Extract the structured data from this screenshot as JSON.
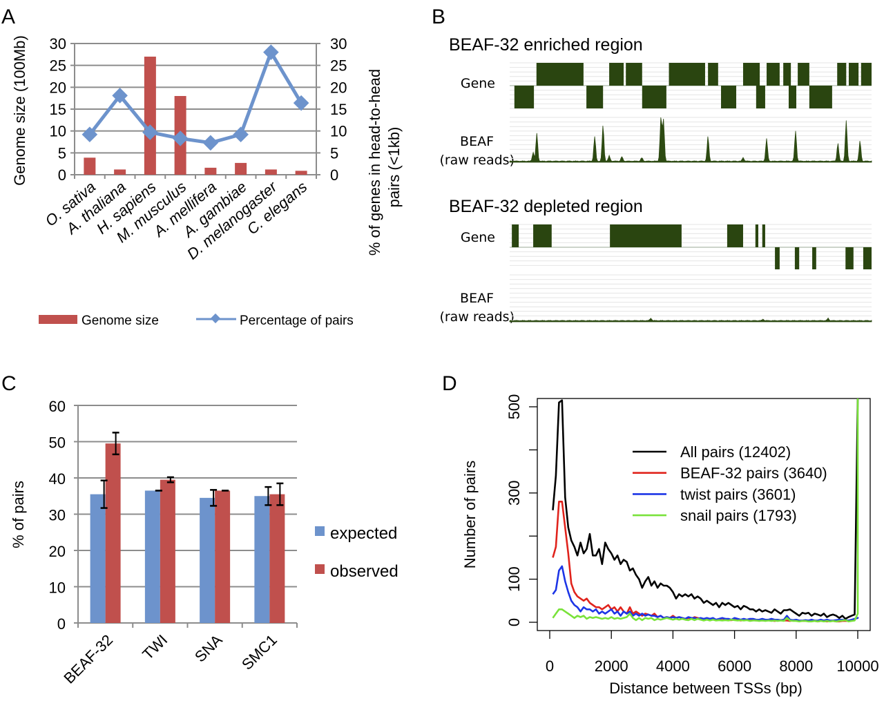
{
  "panels": {
    "A": {
      "letter": "A"
    },
    "B": {
      "letter": "B"
    },
    "C": {
      "letter": "C"
    },
    "D": {
      "letter": "D"
    }
  },
  "chart_data": [
    {
      "id": "A",
      "type": "bar+line",
      "title": "",
      "categories": [
        "O. sativa",
        "A. thaliana",
        "H. sapiens",
        "M. musculus",
        "A. mellifera",
        "A. gambiae",
        "D. melanogaster",
        "C. elegans"
      ],
      "series": [
        {
          "name": "Genome size",
          "type": "bar",
          "axis": "left",
          "color": "#c0504d",
          "values": [
            3.9,
            1.2,
            27.0,
            18.0,
            1.6,
            2.7,
            1.2,
            0.9
          ]
        },
        {
          "name": "Percentage of pairs",
          "type": "line",
          "axis": "right",
          "color": "#6d93cc",
          "values": [
            9.2,
            18.1,
            9.7,
            8.3,
            7.3,
            9.2,
            28.0,
            16.4
          ]
        }
      ],
      "ylabel": "Genome size (100Mb)",
      "ylabel_right": "% of genes in head-to-head pairs (<1kb)",
      "ylabel_right_lines": [
        "% of genes in head-to-head",
        "pairs (<1kb)"
      ],
      "ylim": [
        0,
        30
      ],
      "ylim_right": [
        0,
        30
      ],
      "yticks": [
        "0",
        "5",
        "10",
        "15",
        "20",
        "25",
        "30"
      ],
      "grid": true,
      "legend": [
        "Genome size",
        "Percentage of pairs"
      ],
      "legend_position": "bottom"
    },
    {
      "id": "B",
      "type": "genome-track",
      "regions": [
        {
          "title": "BEAF-32 enriched region",
          "gene_label": "Gene",
          "signal_label_1": "BEAF",
          "signal_label_2": "(raw reads)",
          "genes_plus": [
            [
              0.074,
              0.204
            ],
            [
              0.275,
              0.315
            ],
            [
              0.321,
              0.366
            ],
            [
              0.44,
              0.54
            ],
            [
              0.548,
              0.576
            ],
            [
              0.645,
              0.691
            ],
            [
              0.71,
              0.746
            ],
            [
              0.756,
              0.777
            ],
            [
              0.796,
              0.828
            ],
            [
              0.905,
              0.93
            ],
            [
              0.937,
              0.964
            ],
            [
              0.971,
              1.0
            ]
          ],
          "genes_minus": [
            [
              0.013,
              0.067
            ],
            [
              0.212,
              0.258
            ],
            [
              0.366,
              0.433
            ],
            [
              0.584,
              0.626
            ],
            [
              0.681,
              0.706
            ],
            [
              0.771,
              0.792
            ],
            [
              0.828,
              0.891
            ]
          ],
          "peaks": [
            [
              0.075,
              0.62
            ],
            [
              0.065,
              0.2
            ],
            [
              0.235,
              0.55
            ],
            [
              0.258,
              0.8
            ],
            [
              0.275,
              0.12
            ],
            [
              0.31,
              0.1
            ],
            [
              0.365,
              0.08
            ],
            [
              0.418,
              1.0
            ],
            [
              0.425,
              0.93
            ],
            [
              0.548,
              0.55
            ],
            [
              0.645,
              0.08
            ],
            [
              0.71,
              0.5
            ],
            [
              0.79,
              0.68
            ],
            [
              0.907,
              0.4
            ],
            [
              0.93,
              0.9
            ],
            [
              0.968,
              0.45
            ]
          ],
          "signal_color": "#2d4a12"
        },
        {
          "title": "BEAF-32 depleted region",
          "gene_label": "Gene",
          "signal_label_1": "BEAF",
          "signal_label_2": "(raw reads)",
          "genes_plus": [
            [
              0.006,
              0.025
            ],
            [
              0.065,
              0.116
            ],
            [
              0.277,
              0.475
            ],
            [
              0.601,
              0.645
            ],
            [
              0.679,
              0.687
            ],
            [
              0.698,
              0.706
            ]
          ],
          "genes_minus": [
            [
              0.733,
              0.746
            ],
            [
              0.788,
              0.8
            ],
            [
              0.836,
              0.847
            ],
            [
              0.928,
              0.95
            ],
            [
              0.977,
              1.0
            ]
          ],
          "peaks": [
            [
              0.39,
              0.05
            ],
            [
              0.7,
              0.03
            ],
            [
              0.88,
              0.05
            ]
          ],
          "signal_color": "#2d4a12"
        }
      ],
      "gene_color": "#2a4510"
    },
    {
      "id": "C",
      "type": "bar",
      "categories": [
        "BEAF-32",
        "TWI",
        "SNA",
        "SMC1"
      ],
      "series": [
        {
          "name": "expected",
          "color": "#6d93cc",
          "values": [
            35.5,
            36.5,
            34.5,
            35.0
          ],
          "error": [
            3.8,
            0.0,
            2.2,
            2.5
          ]
        },
        {
          "name": "observed",
          "color": "#c0504d",
          "values": [
            49.5,
            39.5,
            36.5,
            35.5
          ],
          "error": [
            3.0,
            0.7,
            0.0,
            3.0
          ]
        }
      ],
      "ylabel": "% of pairs",
      "xlabel": "",
      "ylim": [
        0,
        60
      ],
      "yticks": [
        "0",
        "10",
        "20",
        "30",
        "40",
        "50",
        "60"
      ],
      "grid": true,
      "legend_position": "right"
    },
    {
      "id": "D",
      "type": "line",
      "xlabel": "Distance between TSSs (bp)",
      "ylabel": "Number of pairs",
      "xlim": [
        0,
        10000
      ],
      "ylim": [
        0,
        500
      ],
      "xticks": [
        "0",
        "2000",
        "4000",
        "6000",
        "8000",
        "10000"
      ],
      "yticks": [
        "0",
        "100",
        "300",
        "500"
      ],
      "legend_position": "top-right",
      "x": [
        100,
        200,
        300,
        400,
        500,
        600,
        700,
        800,
        900,
        1000,
        1100,
        1200,
        1300,
        1400,
        1500,
        1600,
        1700,
        1800,
        1900,
        2000,
        2100,
        2200,
        2300,
        2400,
        2500,
        2600,
        2700,
        2800,
        2900,
        3000,
        3100,
        3200,
        3300,
        3400,
        3500,
        3600,
        3700,
        3800,
        3900,
        4000,
        4100,
        4200,
        4300,
        4400,
        4500,
        4600,
        4700,
        4800,
        4900,
        5000,
        5100,
        5200,
        5300,
        5400,
        5500,
        5600,
        5700,
        5800,
        5900,
        6000,
        6100,
        6200,
        6300,
        6400,
        6500,
        6600,
        6700,
        6800,
        6900,
        7000,
        7100,
        7200,
        7300,
        7400,
        7500,
        7600,
        7700,
        7800,
        7900,
        8000,
        8100,
        8200,
        8300,
        8400,
        8500,
        8600,
        8700,
        8800,
        8900,
        9000,
        9100,
        9200,
        9300,
        9400,
        9500,
        9600,
        9700,
        9800,
        9900,
        10000,
        10050
      ],
      "series": [
        {
          "name": "All pairs (12402)",
          "color": "#000000",
          "values": [
            260,
            340,
            510,
            515,
            290,
            220,
            190,
            175,
            155,
            185,
            160,
            170,
            205,
            155,
            155,
            170,
            135,
            185,
            170,
            160,
            145,
            155,
            135,
            145,
            140,
            120,
            125,
            110,
            100,
            80,
            95,
            105,
            85,
            95,
            80,
            90,
            85,
            85,
            80,
            70,
            55,
            65,
            60,
            65,
            60,
            65,
            55,
            60,
            55,
            45,
            50,
            45,
            40,
            45,
            35,
            45,
            40,
            45,
            40,
            35,
            38,
            30,
            38,
            35,
            30,
            30,
            25,
            30,
            25,
            28,
            25,
            22,
            30,
            25,
            20,
            28,
            28,
            30,
            25,
            20,
            15,
            22,
            20,
            22,
            15,
            20,
            18,
            15,
            20,
            12,
            16,
            18,
            15,
            10,
            15,
            8,
            12,
            15,
            18,
            520,
            520
          ]
        },
        {
          "name": "BEAF-32 pairs (3640)",
          "color": "#e0231c",
          "values": [
            150,
            175,
            280,
            280,
            220,
            160,
            90,
            70,
            60,
            55,
            50,
            55,
            45,
            40,
            35,
            35,
            30,
            35,
            40,
            30,
            35,
            25,
            35,
            25,
            20,
            35,
            20,
            25,
            20,
            15,
            20,
            18,
            15,
            20,
            12,
            15,
            10,
            12,
            10,
            15,
            10,
            12,
            10,
            8,
            10,
            8,
            12,
            10,
            8,
            6,
            8,
            6,
            8,
            5,
            6,
            5,
            8,
            5,
            5,
            6,
            5,
            4,
            5,
            6,
            4,
            5,
            4,
            5,
            4,
            4,
            5,
            4,
            3,
            4,
            5,
            4,
            4,
            3,
            4,
            4,
            3,
            3,
            3,
            4,
            3,
            3,
            2,
            3,
            3,
            2,
            3,
            3,
            2,
            2,
            3,
            3,
            3,
            4,
            8,
            10,
            12
          ]
        },
        {
          "name": "twist pairs (3601)",
          "color": "#1c35e6",
          "values": [
            65,
            75,
            120,
            130,
            95,
            70,
            50,
            40,
            35,
            25,
            35,
            30,
            30,
            25,
            30,
            20,
            25,
            20,
            25,
            30,
            20,
            25,
            15,
            25,
            20,
            25,
            15,
            20,
            15,
            20,
            15,
            18,
            15,
            15,
            12,
            15,
            10,
            12,
            10,
            12,
            10,
            12,
            10,
            8,
            12,
            10,
            10,
            8,
            10,
            8,
            10,
            8,
            10,
            6,
            8,
            10,
            8,
            8,
            6,
            10,
            8,
            6,
            8,
            6,
            8,
            8,
            6,
            6,
            8,
            6,
            6,
            8,
            6,
            6,
            5,
            6,
            15,
            6,
            5,
            6,
            4,
            4,
            5,
            4,
            6,
            4,
            4,
            6,
            4,
            6,
            4,
            4,
            5,
            6,
            6,
            5,
            4,
            6,
            8,
            10,
            12
          ]
        },
        {
          "name": "snail pairs (1793)",
          "color": "#79e23a",
          "values": [
            10,
            20,
            30,
            30,
            25,
            20,
            15,
            10,
            15,
            12,
            15,
            8,
            12,
            10,
            12,
            10,
            8,
            10,
            8,
            12,
            8,
            10,
            8,
            10,
            12,
            20,
            10,
            5,
            10,
            5,
            10,
            8,
            10,
            5,
            8,
            6,
            8,
            10,
            8,
            6,
            8,
            6,
            8,
            6,
            5,
            8,
            5,
            8,
            6,
            4,
            6,
            4,
            6,
            4,
            5,
            4,
            5,
            4,
            6,
            5,
            4,
            5,
            4,
            5,
            3,
            4,
            4,
            3,
            4,
            3,
            4,
            3,
            4,
            3,
            4,
            3,
            10,
            4,
            3,
            3,
            2,
            3,
            3,
            2,
            2,
            3,
            2,
            3,
            2,
            3,
            2,
            3,
            2,
            3,
            4,
            5,
            2,
            3,
            4,
            20,
            520
          ]
        }
      ]
    }
  ]
}
